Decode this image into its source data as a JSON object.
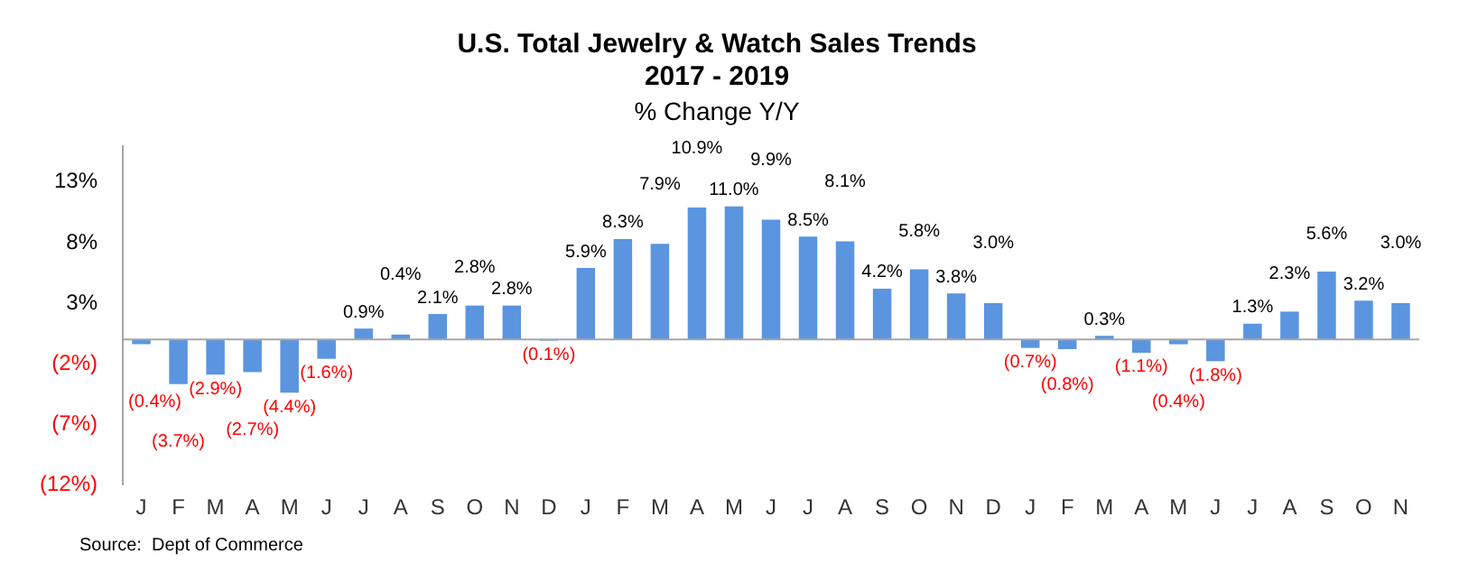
{
  "chart_data": {
    "type": "bar",
    "title": "U.S. Total Jewelry & Watch Sales Trends\n2017 - 2019",
    "subtitle": "% Change Y/Y",
    "categories": [
      "J",
      "F",
      "M",
      "A",
      "M",
      "J",
      "J",
      "A",
      "S",
      "O",
      "N",
      "D",
      "J",
      "F",
      "M",
      "A",
      "M",
      "J",
      "J",
      "A",
      "S",
      "O",
      "N",
      "D",
      "J",
      "F",
      "M",
      "A",
      "M",
      "J",
      "J",
      "A",
      "S",
      "O",
      "N"
    ],
    "series": [
      {
        "color": "#5b95e0",
        "values": [
          -0.4,
          -3.7,
          -2.9,
          -2.7,
          -4.4,
          -1.6,
          0.9,
          0.4,
          2.1,
          2.8,
          2.8,
          -0.1,
          5.9,
          8.3,
          7.9,
          10.9,
          11.0,
          9.9,
          8.5,
          8.1,
          4.2,
          5.8,
          3.8,
          3.0,
          -0.7,
          -0.8,
          0.3,
          -1.1,
          -0.4,
          -1.8,
          1.3,
          2.3,
          5.6,
          3.2,
          3.0
        ],
        "value_labels": [
          "(0.4%)",
          "(3.7%)",
          "(2.9%)",
          "(2.7%)",
          "(4.4%)",
          "(1.6%)",
          "0.9%",
          "0.4%",
          "2.1%",
          "2.8%",
          "2.8%",
          "(0.1%)",
          "5.9%",
          "8.3%",
          "7.9%",
          "10.9%",
          "11.0%",
          "9.9%",
          "8.5%",
          "8.1%",
          "4.2%",
          "5.8%",
          "3.8%",
          "3.0%",
          "(0.7%)",
          "(0.8%)",
          "0.3%",
          "(1.1%)",
          "(0.4%)",
          "(1.8%)",
          "1.3%",
          "2.3%",
          "5.6%",
          "3.2%",
          "3.0%"
        ]
      }
    ],
    "ylim": [
      -12,
      16
    ],
    "yticks": [
      {
        "value": -12,
        "label": "(12%)"
      },
      {
        "value": -7,
        "label": "(7%)"
      },
      {
        "value": -2,
        "label": "(2%)"
      },
      {
        "value": 3,
        "label": "3%"
      },
      {
        "value": 8,
        "label": "8%"
      },
      {
        "value": 13,
        "label": "13%"
      }
    ],
    "grid": false,
    "legend": false,
    "annotations": [
      "Source:  Dept of Commerce"
    ]
  }
}
